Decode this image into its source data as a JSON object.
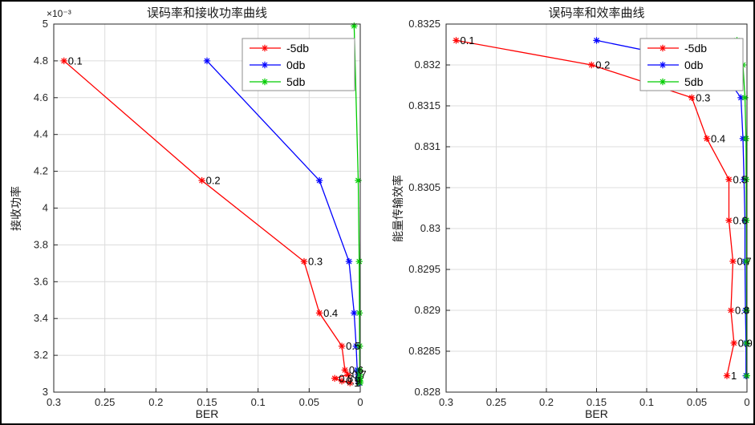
{
  "chart_data": [
    {
      "type": "line",
      "title": "误码率和接收功率曲线",
      "xlabel": "BER",
      "ylabel": "接收功率",
      "y_multiplier": "×10⁻³",
      "xlim": [
        0.3,
        0
      ],
      "ylim": [
        3,
        5
      ],
      "x_reversed": true,
      "grid": true,
      "legend_position": "top-right",
      "x_ticks": [
        {
          "v": 0.3,
          "t": "0.3"
        },
        {
          "v": 0.25,
          "t": "0.25"
        },
        {
          "v": 0.2,
          "t": "0.2"
        },
        {
          "v": 0.15,
          "t": "0.15"
        },
        {
          "v": 0.1,
          "t": "0.1"
        },
        {
          "v": 0.05,
          "t": "0.05"
        },
        {
          "v": 0,
          "t": "0"
        }
      ],
      "y_ticks": [
        {
          "v": 3,
          "t": "3"
        },
        {
          "v": 3.2,
          "t": "3.2"
        },
        {
          "v": 3.4,
          "t": "3.4"
        },
        {
          "v": 3.6,
          "t": "3.6"
        },
        {
          "v": 3.8,
          "t": "3.8"
        },
        {
          "v": 4,
          "t": "4"
        },
        {
          "v": 4.2,
          "t": "4.2"
        },
        {
          "v": 4.4,
          "t": "4.4"
        },
        {
          "v": 4.6,
          "t": "4.6"
        },
        {
          "v": 4.8,
          "t": "4.8"
        },
        {
          "v": 5,
          "t": "5"
        }
      ],
      "series": [
        {
          "name": "-5db",
          "color": "#ff0000",
          "x": [
            0.29,
            0.155,
            0.055,
            0.04,
            0.018,
            0.015,
            0.012,
            0.025,
            0.018,
            0.01
          ],
          "y": [
            4.8,
            4.15,
            3.71,
            3.43,
            3.25,
            3.12,
            3.095,
            3.075,
            3.06,
            3.05
          ]
        },
        {
          "name": "0db",
          "color": "#0000ff",
          "x": [
            0.15,
            0.04,
            0.011,
            0.006,
            0.004,
            0.003,
            0.002,
            0.002,
            0.0015,
            0.001
          ],
          "y": [
            4.8,
            4.15,
            3.71,
            3.43,
            3.25,
            3.12,
            3.095,
            3.075,
            3.06,
            3.05
          ]
        },
        {
          "name": "5db",
          "color": "#00cc00",
          "x": [
            0.006,
            0.002,
            0.001,
            0.0008,
            0.0006,
            0.0005,
            0.0004,
            0.0003,
            0.0002,
            0.0001
          ],
          "y": [
            4.99,
            4.15,
            3.71,
            3.43,
            3.25,
            3.12,
            3.095,
            3.075,
            3.06,
            3.05
          ]
        }
      ],
      "annotations": [
        {
          "t": "0.1",
          "x": 0.29,
          "y": 4.8
        },
        {
          "t": "0.2",
          "x": 0.155,
          "y": 4.15
        },
        {
          "t": "0.3",
          "x": 0.055,
          "y": 3.71
        },
        {
          "t": "0.4",
          "x": 0.04,
          "y": 3.43
        },
        {
          "t": "0.5",
          "x": 0.018,
          "y": 3.25
        },
        {
          "t": "0.6",
          "x": 0.015,
          "y": 3.12
        },
        {
          "t": "0.7",
          "x": 0.012,
          "y": 3.095
        },
        {
          "t": "0.8",
          "x": 0.025,
          "y": 3.075
        },
        {
          "t": "0.9",
          "x": 0.018,
          "y": 3.06
        },
        {
          "t": "1",
          "x": 0.01,
          "y": 3.05
        }
      ]
    },
    {
      "type": "line",
      "title": "误码率和效率曲线",
      "xlabel": "BER",
      "ylabel": "能量传输效率",
      "xlim": [
        0.3,
        0
      ],
      "ylim": [
        0.828,
        0.8325
      ],
      "x_reversed": true,
      "grid": true,
      "legend_position": "top-right",
      "x_ticks": [
        {
          "v": 0.3,
          "t": "0.3"
        },
        {
          "v": 0.25,
          "t": "0.25"
        },
        {
          "v": 0.2,
          "t": "0.2"
        },
        {
          "v": 0.15,
          "t": "0.15"
        },
        {
          "v": 0.1,
          "t": "0.1"
        },
        {
          "v": 0.05,
          "t": "0.05"
        },
        {
          "v": 0,
          "t": "0"
        }
      ],
      "y_ticks": [
        {
          "v": 0.828,
          "t": "0.828"
        },
        {
          "v": 0.8285,
          "t": "0.8285"
        },
        {
          "v": 0.829,
          "t": "0.829"
        },
        {
          "v": 0.8295,
          "t": "0.8295"
        },
        {
          "v": 0.83,
          "t": "0.83"
        },
        {
          "v": 0.8305,
          "t": "0.8305"
        },
        {
          "v": 0.831,
          "t": "0.831"
        },
        {
          "v": 0.8315,
          "t": "0.8315"
        },
        {
          "v": 0.832,
          "t": "0.832"
        },
        {
          "v": 0.8325,
          "t": "0.8325"
        }
      ],
      "series": [
        {
          "name": "-5db",
          "color": "#ff0000",
          "x": [
            0.29,
            0.155,
            0.055,
            0.04,
            0.018,
            0.018,
            0.014,
            0.016,
            0.013,
            0.02
          ],
          "y": [
            0.8323,
            0.832,
            0.8316,
            0.8311,
            0.8306,
            0.8301,
            0.8296,
            0.829,
            0.8286,
            0.8282
          ]
        },
        {
          "name": "0db",
          "color": "#0000ff",
          "x": [
            0.15,
            0.03,
            0.006,
            0.004,
            0.003,
            0.002,
            0.002,
            0.0015,
            0.001,
            0.001
          ],
          "y": [
            0.8323,
            0.832,
            0.8316,
            0.8311,
            0.8306,
            0.8301,
            0.8296,
            0.829,
            0.8286,
            0.8282
          ]
        },
        {
          "name": "5db",
          "color": "#00cc00",
          "x": [
            0.01,
            0.004,
            0.002,
            0.001,
            0.0008,
            0.0006,
            0.0005,
            0.0004,
            0.0003,
            0.0002
          ],
          "y": [
            0.8323,
            0.832,
            0.8316,
            0.8311,
            0.8306,
            0.8301,
            0.8296,
            0.829,
            0.8286,
            0.8282
          ]
        }
      ],
      "annotations": [
        {
          "t": "0.1",
          "x": 0.29,
          "y": 0.8323
        },
        {
          "t": "0.2",
          "x": 0.155,
          "y": 0.832
        },
        {
          "t": "0.3",
          "x": 0.055,
          "y": 0.8316
        },
        {
          "t": "0.4",
          "x": 0.04,
          "y": 0.8311
        },
        {
          "t": "0.5",
          "x": 0.018,
          "y": 0.8306
        },
        {
          "t": "0.6",
          "x": 0.018,
          "y": 0.8301
        },
        {
          "t": "0.7",
          "x": 0.014,
          "y": 0.8296
        },
        {
          "t": "0.8",
          "x": 0.016,
          "y": 0.829
        },
        {
          "t": "0.9",
          "x": 0.013,
          "y": 0.8286
        },
        {
          "t": "1",
          "x": 0.02,
          "y": 0.8282
        }
      ]
    }
  ],
  "colors": {
    "axis": "#262626",
    "grid": "#dcdcdc",
    "legend_border": "#8c8c8c",
    "annotation": "#000000"
  }
}
